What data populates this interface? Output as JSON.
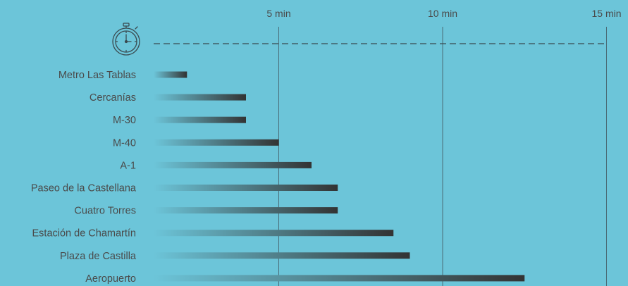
{
  "background_color": "#6cc5d9",
  "icon": "stopwatch-icon",
  "chart_data": {
    "type": "bar",
    "orientation": "horizontal",
    "title": "",
    "xlabel": "",
    "ylabel": "",
    "xlim": [
      0,
      15
    ],
    "x_ticks": [
      5,
      10,
      15
    ],
    "x_tick_labels": [
      "5 min",
      "10 min",
      "15 min"
    ],
    "categories": [
      "Metro Las Tablas",
      "Cercanías",
      "M-30",
      "M-40",
      "A-1",
      "Paseo de la Castellana",
      "Cuatro Torres",
      "Estación de Chamartín",
      "Plaza de Castilla",
      "Aeropuerto"
    ],
    "values": [
      2.2,
      4,
      4,
      5,
      6,
      6.8,
      6.8,
      8.5,
      9,
      12.5
    ],
    "bar_gradient": [
      "#6cc5d9",
      "#333333"
    ],
    "grid": true
  }
}
